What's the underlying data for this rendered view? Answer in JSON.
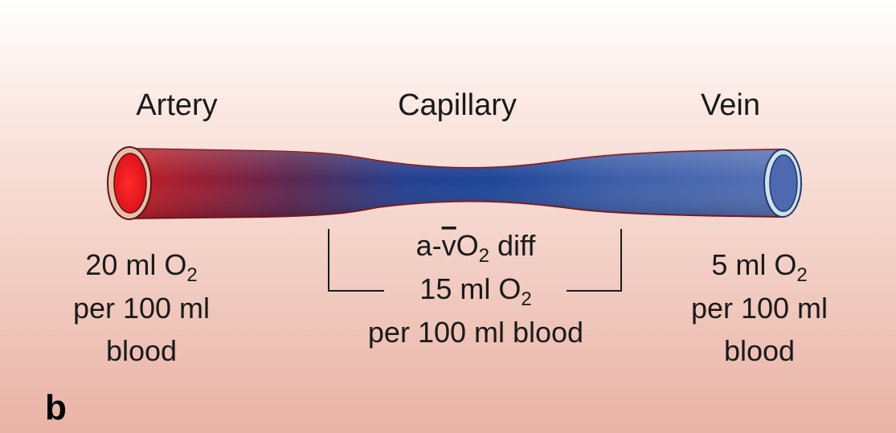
{
  "panel_letter": "b",
  "vessels": {
    "artery": "Artery",
    "capillary": "Capillary",
    "vein": "Vein"
  },
  "artery_content": {
    "amount": "20 ml O",
    "subscript": "2",
    "line2": "per 100 ml",
    "line3": "blood"
  },
  "difference": {
    "prefix": "a-",
    "vbar": "v",
    "o": "O",
    "subscript": "2",
    "suffix": " diff",
    "amount": "15 ml O",
    "amount_subscript": "2",
    "line3": "per 100 ml blood"
  },
  "vein_content": {
    "amount": "5 ml O",
    "subscript": "2",
    "line2": "per 100 ml",
    "line3": "blood"
  },
  "colors": {
    "artery_red": "#b01e2a",
    "capillary_blue": "#1e4596",
    "vein_blue": "#4f6db3",
    "lumen_red": "#ee1c24",
    "background_top": "#ffffff",
    "background_bottom": "#eab3a6"
  }
}
